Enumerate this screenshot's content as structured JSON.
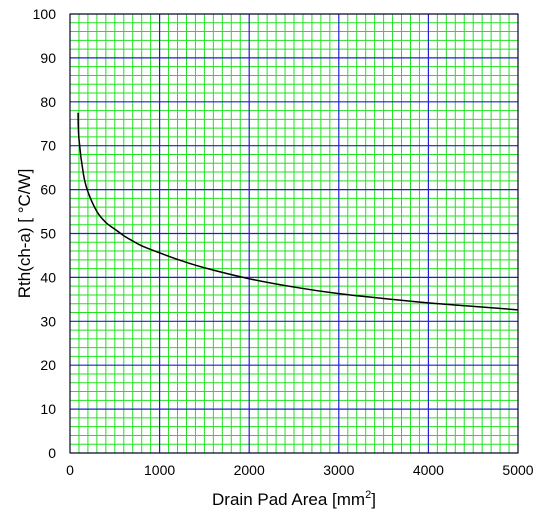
{
  "chart_data": {
    "type": "line",
    "title": "",
    "xlabel": "Drain Pad Area [mm",
    "xlabel_sup": "2",
    "xlabel_tail": "]",
    "ylabel": "Rth(ch-a) [ °C/W]",
    "xlim": [
      0,
      5000
    ],
    "ylim": [
      0,
      100
    ],
    "x_major_ticks": [
      0,
      1000,
      2000,
      3000,
      4000,
      5000
    ],
    "x_tick_labels": [
      "0",
      "1000",
      "2000",
      "3000",
      "4000",
      "5000"
    ],
    "y_major_ticks": [
      0,
      10,
      20,
      30,
      40,
      50,
      60,
      70,
      80,
      90,
      100
    ],
    "y_tick_labels": [
      "0",
      "10",
      "20",
      "30",
      "40",
      "50",
      "60",
      "70",
      "80",
      "90",
      "100"
    ],
    "x_minor_step": 100,
    "y_minor_step": 2,
    "grid": true,
    "legend": "none",
    "colors": {
      "major_grid": "#1f1fd6",
      "minor_grid": "#22e022",
      "line": "#000000",
      "frame": "#000000"
    },
    "series": [
      {
        "x": [
          90,
          100,
          150,
          200,
          300,
          400,
          500,
          600,
          700,
          800,
          1000,
          1200,
          1500,
          2000,
          2500,
          3000,
          3500,
          4000,
          4500,
          5000
        ],
        "y": [
          77.5,
          71.5,
          63.5,
          59.5,
          55.0,
          52.5,
          51.0,
          49.5,
          48.3,
          47.2,
          45.6,
          44.1,
          42.2,
          39.7,
          37.8,
          36.3,
          35.2,
          34.2,
          33.4,
          32.6
        ]
      }
    ]
  }
}
